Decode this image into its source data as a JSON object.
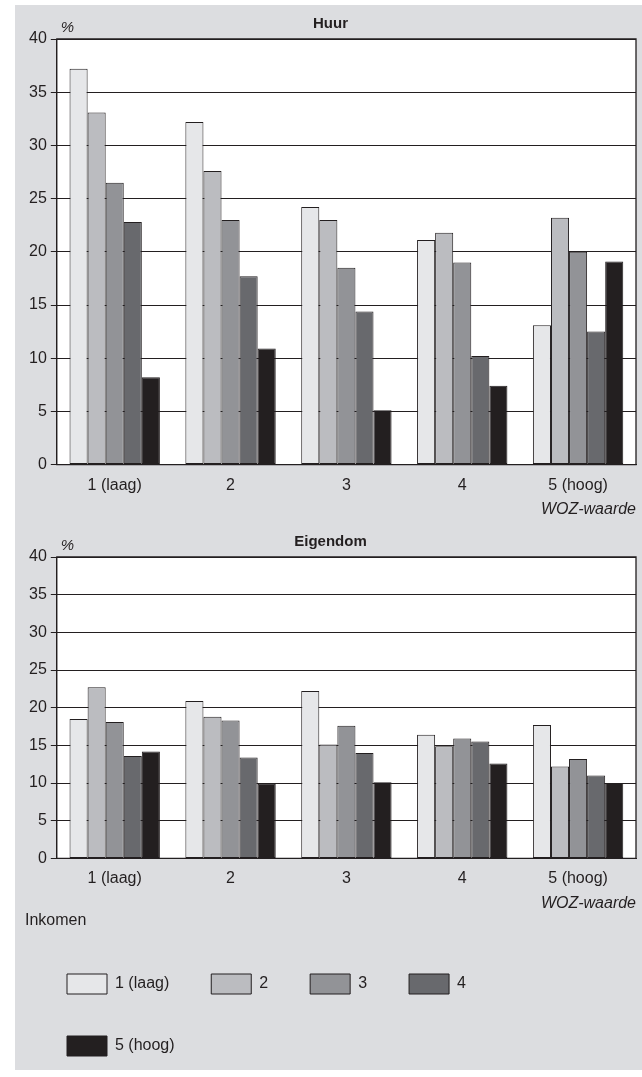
{
  "chart_data": [
    {
      "type": "bar",
      "title": "Huur",
      "ylabel": "%",
      "xlabel": "WOZ-waarde",
      "categories": [
        "1 (laag)",
        "2",
        "3",
        "4",
        "5 (hoog)"
      ],
      "ylim": [
        0,
        40
      ],
      "yticks": [
        0,
        5,
        10,
        15,
        20,
        25,
        30,
        35,
        40
      ],
      "grid": "y",
      "legend": false,
      "series": [
        {
          "color": "#e6e7e9",
          "values": [
            37.2,
            32.2,
            24.2,
            21.1,
            13.1
          ]
        },
        {
          "color": "#bbbcc0",
          "values": [
            33.1,
            27.6,
            23.0,
            21.8,
            23.2
          ]
        },
        {
          "color": "#929397",
          "values": [
            26.5,
            23.0,
            18.5,
            19.0,
            20.0
          ]
        },
        {
          "color": "#68696d",
          "values": [
            22.8,
            17.7,
            14.4,
            10.2,
            12.5
          ]
        },
        {
          "color": "#231f20",
          "values": [
            8.2,
            10.9,
            5.1,
            7.4,
            19.1
          ]
        }
      ]
    },
    {
      "type": "bar",
      "title": "Eigendom",
      "ylabel": "%",
      "xlabel": "WOZ-waarde",
      "legend_title": "Inkomen",
      "categories": [
        "1 (laag)",
        "2",
        "3",
        "4",
        "5 (hoog)"
      ],
      "ylim": [
        0,
        40
      ],
      "yticks": [
        0,
        5,
        10,
        15,
        20,
        25,
        30,
        35,
        40
      ],
      "grid": "y",
      "legend": "bottom",
      "series": [
        {
          "name": "1 (laag)",
          "color": "#e6e7e9",
          "values": [
            18.5,
            20.9,
            22.2,
            16.4,
            17.7
          ]
        },
        {
          "name": "2",
          "color": "#bbbcc0",
          "values": [
            22.7,
            18.8,
            15.1,
            14.9,
            12.2
          ]
        },
        {
          "name": "3",
          "color": "#929397",
          "values": [
            18.1,
            18.3,
            17.6,
            15.9,
            13.2
          ]
        },
        {
          "name": "4",
          "color": "#68696d",
          "values": [
            13.6,
            13.4,
            14.0,
            15.5,
            11.0
          ]
        },
        {
          "name": "5 (hoog)",
          "color": "#231f20",
          "values": [
            14.2,
            9.9,
            10.1,
            12.6,
            10.0
          ]
        }
      ]
    }
  ]
}
